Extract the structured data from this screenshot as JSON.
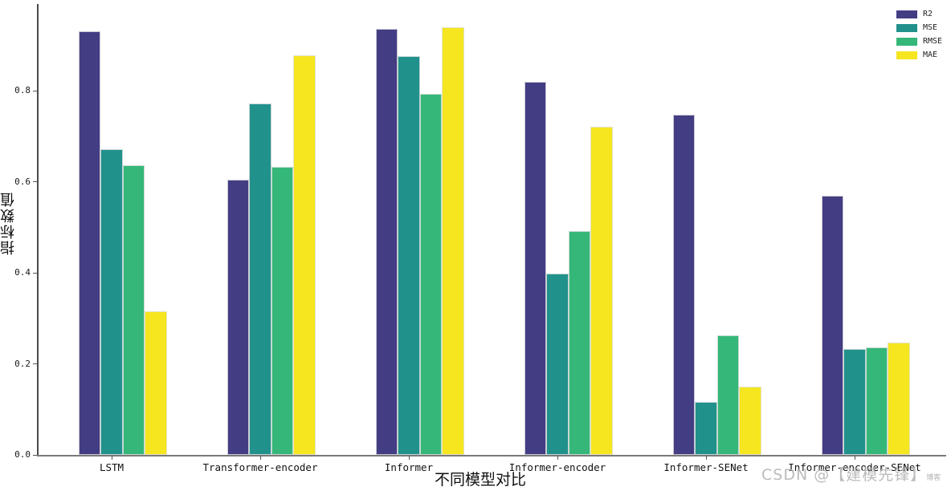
{
  "chart_data": {
    "type": "bar",
    "xlabel": "不同模型对比",
    "ylabel": "指标数值",
    "categories": [
      "LSTM",
      "Transformer-encoder",
      "Informer",
      "Informer-encoder",
      "Informer-SENet",
      "Informer-encoder-SENet"
    ],
    "series": [
      {
        "name": "R2",
        "color": "#433d84",
        "values": [
          0.93,
          0.604,
          0.936,
          0.819,
          0.747,
          0.569
        ]
      },
      {
        "name": "MSE",
        "color": "#21918c",
        "values": [
          0.671,
          0.772,
          0.876,
          0.398,
          0.117,
          0.233
        ]
      },
      {
        "name": "RMSE",
        "color": "#35b779",
        "values": [
          0.636,
          0.633,
          0.793,
          0.492,
          0.263,
          0.236
        ]
      },
      {
        "name": "MAE",
        "color": "#f5e61f",
        "values": [
          0.315,
          0.878,
          0.939,
          0.721,
          0.149,
          0.247
        ]
      }
    ],
    "ylim": [
      0,
      0.99
    ],
    "yticks": [
      "0.0",
      "0.2",
      "0.4",
      "0.6",
      "0.8"
    ],
    "legend_position": "upper right",
    "grid": false
  },
  "watermark": {
    "text": "CSDN @【建模先锋】",
    "suffix": "博客"
  }
}
